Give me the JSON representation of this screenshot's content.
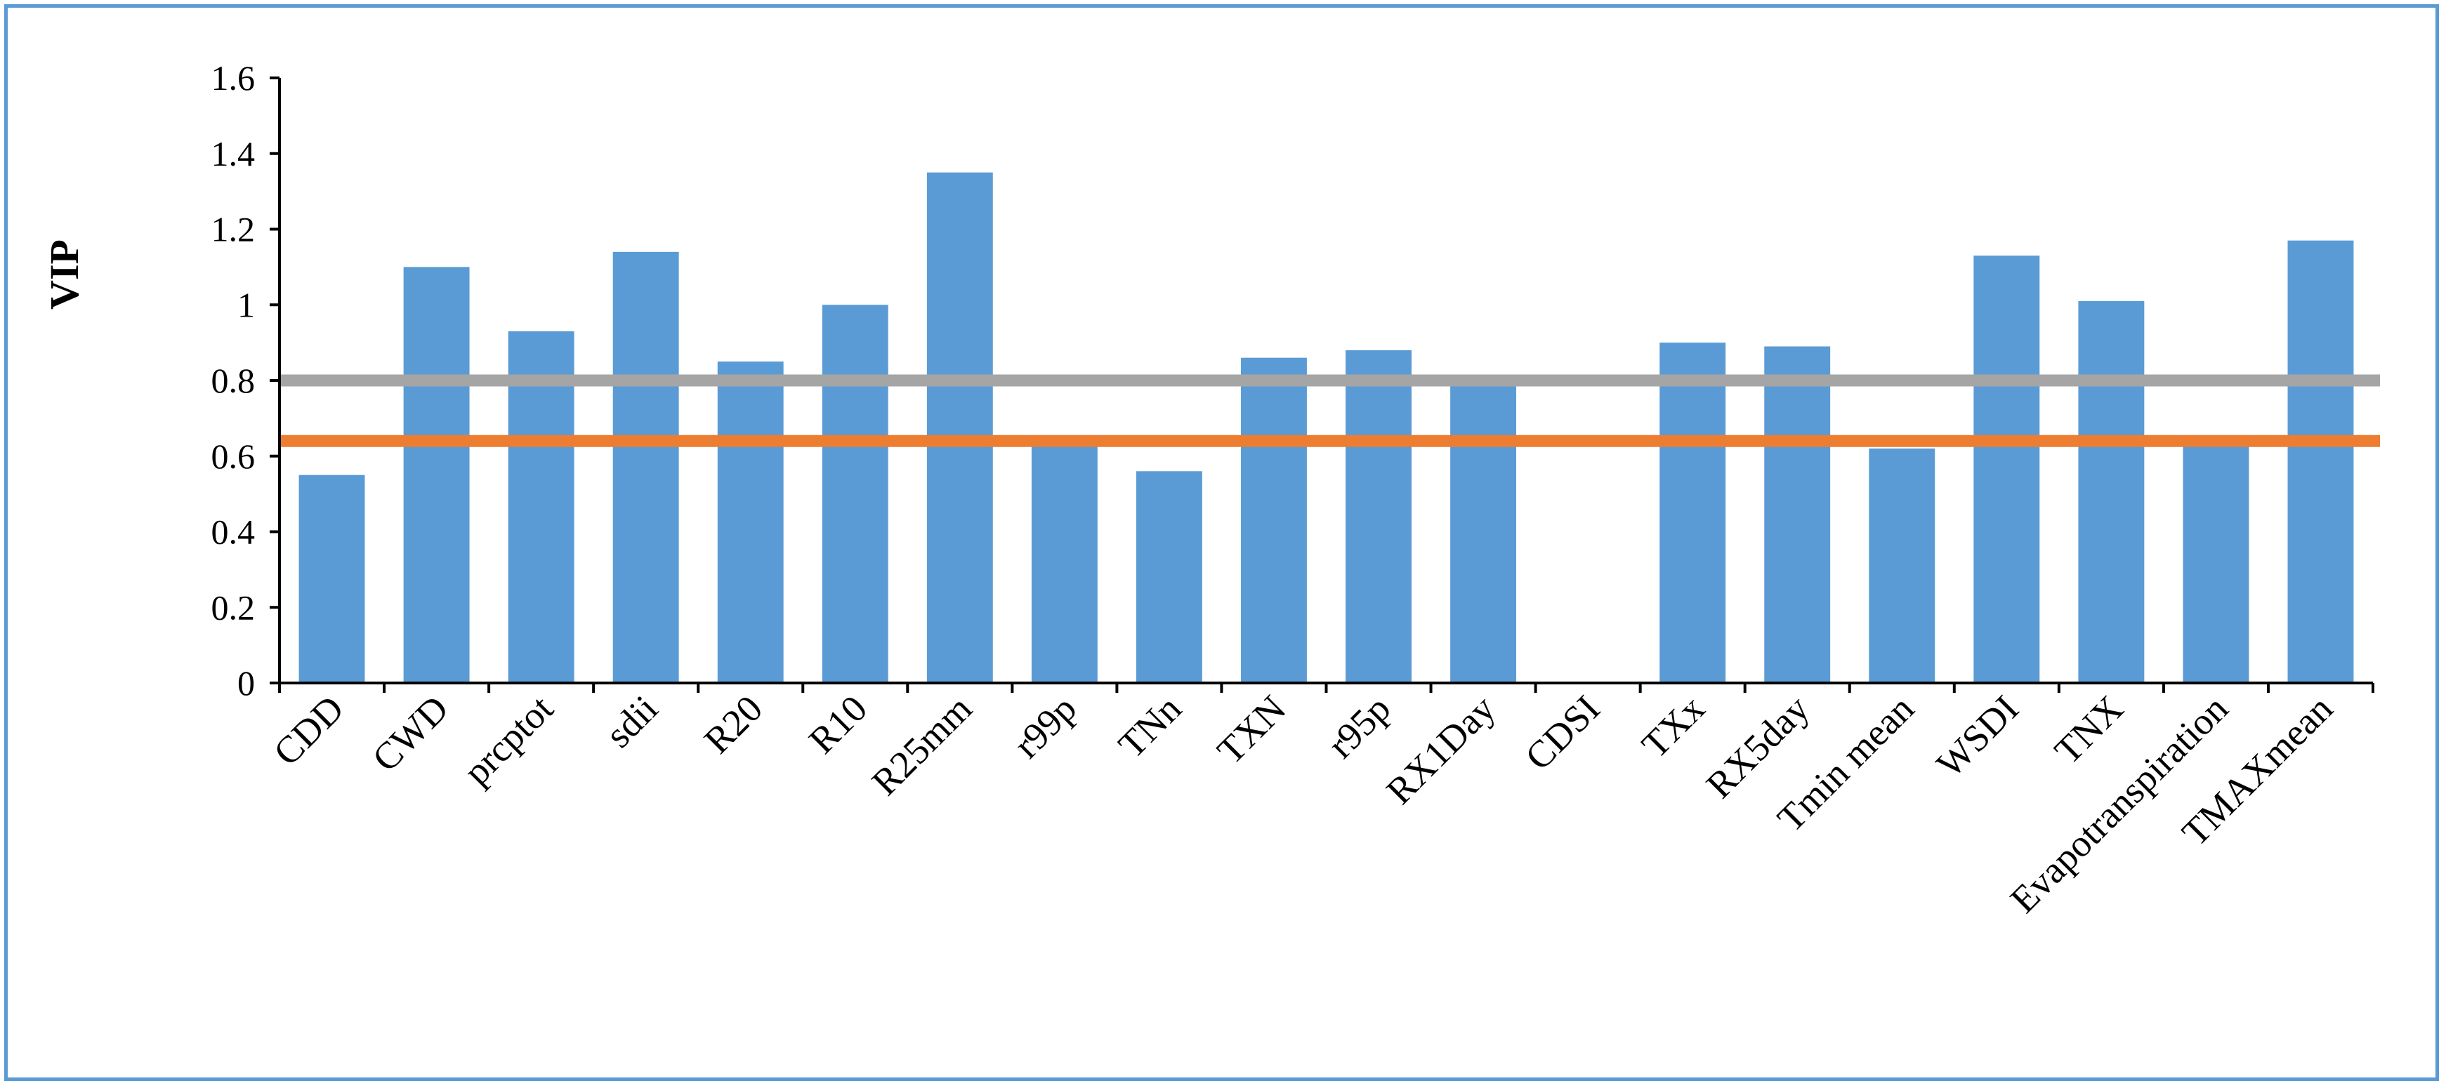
{
  "chart_data": {
    "type": "bar",
    "title": "",
    "xlabel": "",
    "ylabel": "VIP",
    "ylim": [
      0,
      1.6
    ],
    "yticks": [
      "0",
      "0.2",
      "0.4",
      "0.6",
      "0.8",
      "1",
      "1.2",
      "1.4",
      "1.6"
    ],
    "grid": false,
    "legend": "none",
    "categories": [
      "CDD",
      "CWD",
      "prcptot",
      "sdii",
      "R20",
      "R10",
      "R25mm",
      "r99p",
      "TNn",
      "TXN",
      "r95p",
      "RX1Day",
      "CDSI",
      "TXx",
      "RX5day",
      "Tmin mean",
      "WSDI",
      "TNX",
      "Evapotranspiration",
      "TMAXmean"
    ],
    "values": [
      0.55,
      1.1,
      0.93,
      1.14,
      0.85,
      1.0,
      1.35,
      0.64,
      0.56,
      0.86,
      0.88,
      0.8,
      0,
      0.9,
      0.89,
      0.62,
      1.13,
      1.01,
      0.64,
      1.17
    ],
    "bar_color": "#5b9bd5",
    "reference_lines": [
      {
        "value": 0.8,
        "color": "#a5a5a5"
      },
      {
        "value": 0.64,
        "color": "#ed7d31"
      }
    ]
  }
}
